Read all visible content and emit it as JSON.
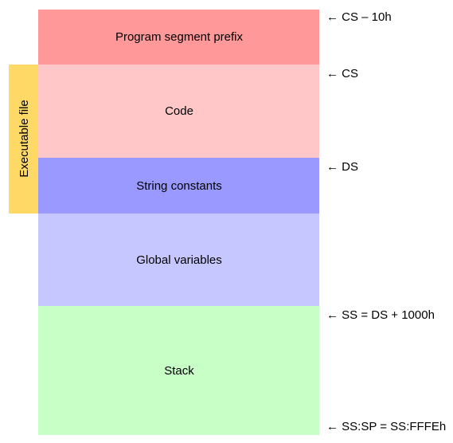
{
  "segments": [
    {
      "label": "Program segment prefix"
    },
    {
      "label": "Code"
    },
    {
      "label": "String constants"
    },
    {
      "label": "Global variables"
    },
    {
      "label": "Stack"
    }
  ],
  "side_label": "Executable file",
  "pointers": [
    {
      "label": "← CS – 10h"
    },
    {
      "label": "← CS"
    },
    {
      "label": "← DS"
    },
    {
      "label": "← SS = DS + 1000h"
    },
    {
      "label": "← SS:SP = SS:FFFEh"
    }
  ]
}
